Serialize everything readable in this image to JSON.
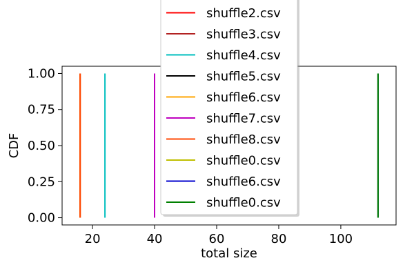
{
  "chart_data": {
    "type": "line",
    "title": "",
    "xlabel": "total size",
    "ylabel": "CDF",
    "xlim": [
      10.2,
      117.8
    ],
    "ylim": [
      -0.05,
      1.05
    ],
    "xticks": [
      20,
      40,
      60,
      80,
      100
    ],
    "xtick_labels": [
      "20",
      "40",
      "60",
      "80",
      "100"
    ],
    "yticks": [
      0.0,
      0.25,
      0.5,
      0.75,
      1.0
    ],
    "ytick_labels": [
      "0.00",
      "0.25",
      "0.50",
      "0.75",
      "1.00"
    ],
    "grid": false,
    "legend_position": "top-center",
    "series": [
      {
        "name": "shuffle2.csv",
        "color": "#ff0000",
        "x": [
          16,
          16
        ],
        "y": [
          0,
          1
        ]
      },
      {
        "name": "shuffle3.csv",
        "color": "#b22222",
        "x": [
          16,
          16
        ],
        "y": [
          0,
          1
        ]
      },
      {
        "name": "shuffle4.csv",
        "color": "#00bfbf",
        "x": [
          24,
          24
        ],
        "y": [
          0,
          1
        ]
      },
      {
        "name": "shuffle5.csv",
        "color": "#000000",
        "x": [
          40,
          40
        ],
        "y": [
          0,
          1
        ]
      },
      {
        "name": "shuffle6.csv",
        "color": "#ffa500",
        "x": [
          16,
          16
        ],
        "y": [
          0,
          1
        ]
      },
      {
        "name": "shuffle7.csv",
        "color": "#bf00bf",
        "x": [
          40,
          40
        ],
        "y": [
          0,
          1
        ]
      },
      {
        "name": "shuffle8.csv",
        "color": "#ff4500",
        "x": [
          16,
          16
        ],
        "y": [
          0,
          1
        ]
      },
      {
        "name": "shuffle0.csv",
        "color": "#bfbf00",
        "x": [
          112,
          112
        ],
        "y": [
          0,
          1
        ]
      },
      {
        "name": "shuffle6.csv",
        "color": "#0000cd",
        "x": [
          112,
          112
        ],
        "y": [
          0,
          1
        ]
      },
      {
        "name": "shuffle0.csv",
        "color": "#008000",
        "x": [
          112,
          112
        ],
        "y": [
          0,
          1
        ]
      }
    ]
  }
}
